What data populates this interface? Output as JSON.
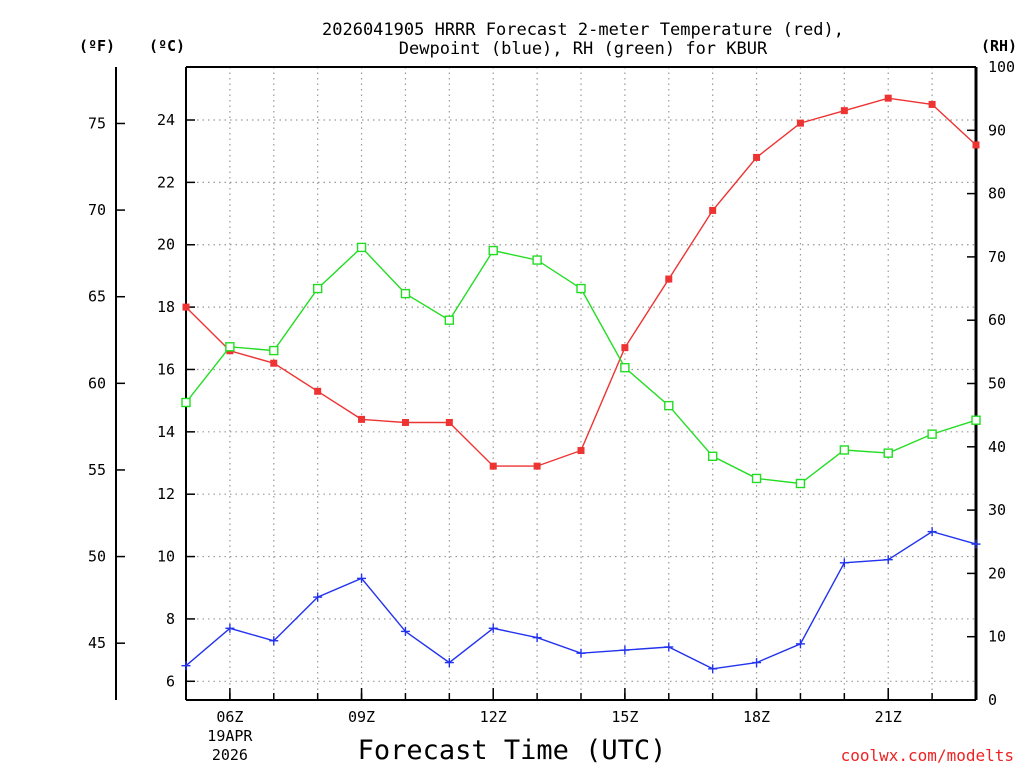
{
  "chart_data": {
    "type": "line",
    "title_line1": "2026041905 HRRR Forecast 2-meter Temperature (red),",
    "title_line2": "Dewpoint (blue), RH (green) for KBUR",
    "xlabel": "Forecast Time (UTC)",
    "x": [
      5,
      6,
      7,
      8,
      9,
      10,
      11,
      12,
      13,
      14,
      15,
      16,
      17,
      18,
      19,
      20,
      21,
      22,
      23
    ],
    "x_ticks": [
      {
        "hour": 6,
        "label": "06Z",
        "sub1": "19APR",
        "sub2": "2026"
      },
      {
        "hour": 9,
        "label": "09Z"
      },
      {
        "hour": 12,
        "label": "12Z"
      },
      {
        "hour": 15,
        "label": "15Z"
      },
      {
        "hour": 18,
        "label": "18Z"
      },
      {
        "hour": 21,
        "label": "21Z"
      }
    ],
    "xlim": [
      5,
      23
    ],
    "left_axis_c": {
      "unit": "(ºC)",
      "ylim": [
        5.4,
        25.7
      ],
      "ticks": [
        6,
        8,
        10,
        12,
        14,
        16,
        18,
        20,
        22,
        24
      ]
    },
    "left_axis_f": {
      "unit": "(ºF)",
      "ticks": [
        45,
        50,
        55,
        60,
        65,
        70,
        75
      ]
    },
    "right_axis_rh": {
      "unit": "(RH)",
      "ylim": [
        0,
        100
      ],
      "ticks": [
        0,
        10,
        20,
        30,
        40,
        50,
        60,
        70,
        80,
        90,
        100
      ]
    },
    "series": [
      {
        "name": "2-meter Temperature (ºC)",
        "axis": "c",
        "color": "#ee3333",
        "marker": "filled-square",
        "values": [
          18.0,
          16.6,
          16.2,
          15.3,
          14.4,
          14.3,
          14.3,
          12.9,
          12.9,
          13.4,
          16.7,
          18.9,
          21.1,
          22.8,
          23.9,
          24.3,
          24.7,
          24.5,
          23.2
        ]
      },
      {
        "name": "Dewpoint (ºC)",
        "axis": "c",
        "color": "#2233ee",
        "marker": "plus",
        "values": [
          6.5,
          7.7,
          7.3,
          8.7,
          9.3,
          7.6,
          6.6,
          7.7,
          7.4,
          6.9,
          7.0,
          7.1,
          6.4,
          6.6,
          7.2,
          9.8,
          9.9,
          10.8,
          10.4
        ]
      },
      {
        "name": "RH (%)",
        "axis": "rh",
        "color": "#22dd22",
        "marker": "open-square",
        "values": [
          47,
          55.8,
          55.2,
          65,
          71.5,
          64.2,
          60,
          71,
          69.5,
          65,
          52.5,
          46.5,
          38.5,
          35,
          34.2,
          39.5,
          39,
          42,
          44.2
        ]
      }
    ],
    "grid": "dotted"
  },
  "credit": "coolwx.com/modelts"
}
